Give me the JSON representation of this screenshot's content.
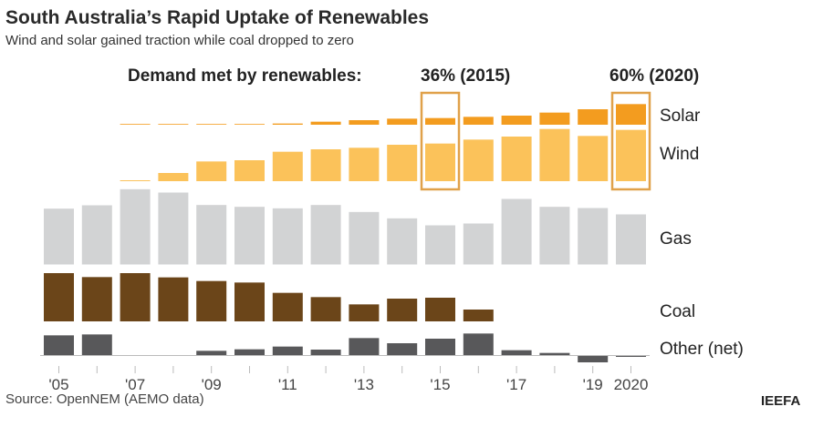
{
  "title": "South Australia’s Rapid Uptake of Renewables",
  "subtitle": "Wind and solar gained traction while coal dropped to zero",
  "annotation": {
    "label": "Demand met by renewables:",
    "marks": [
      {
        "text": "36% (2015)",
        "year": 2015
      },
      {
        "text": "60% (2020)",
        "year": 2020
      }
    ]
  },
  "source": "Source: OpenNEM (AEMO data)",
  "brand": "IEEFA",
  "chart_data": {
    "type": "bar",
    "note_units": "relative (no value axis shown)",
    "categories": [
      2005,
      2006,
      2007,
      2008,
      2009,
      2010,
      2011,
      2012,
      2013,
      2014,
      2015,
      2016,
      2017,
      2018,
      2019,
      2020
    ],
    "tick_labels": [
      "'05",
      "",
      "'07",
      "",
      "'09",
      "",
      "'11",
      "",
      "'13",
      "",
      "'15",
      "",
      "'17",
      "",
      "'19",
      "2020"
    ],
    "series": [
      {
        "name": "Solar",
        "color": "#f39c1f",
        "values": [
          0,
          0,
          1,
          1,
          1,
          1.5,
          4,
          10,
          15,
          20,
          22,
          26,
          30,
          40,
          51,
          68
        ]
      },
      {
        "name": "Wind",
        "color": "#fbc25a",
        "values": [
          0,
          0,
          3,
          27,
          65,
          69,
          97,
          105,
          110,
          120,
          124,
          137,
          147,
          172,
          149,
          169
        ]
      },
      {
        "name": "Gas",
        "color": "#d2d3d4",
        "values": [
          184,
          195,
          248,
          237,
          196,
          190,
          185,
          196,
          173,
          152,
          129,
          135,
          216,
          190,
          186,
          165
        ]
      },
      {
        "name": "Coal",
        "color": "#6b4519",
        "values": [
          159,
          146,
          159,
          145,
          133,
          128,
          94,
          80,
          56,
          75,
          78,
          39,
          0,
          0,
          0,
          0
        ]
      },
      {
        "name": "Other (net)",
        "color": "#58585a",
        "values": [
          65,
          68,
          0,
          0,
          14,
          19,
          28,
          18,
          56,
          39,
          54,
          71,
          16,
          7,
          -24,
          -6
        ]
      }
    ],
    "highlight_color": "#e0a14a",
    "grid": false
  }
}
